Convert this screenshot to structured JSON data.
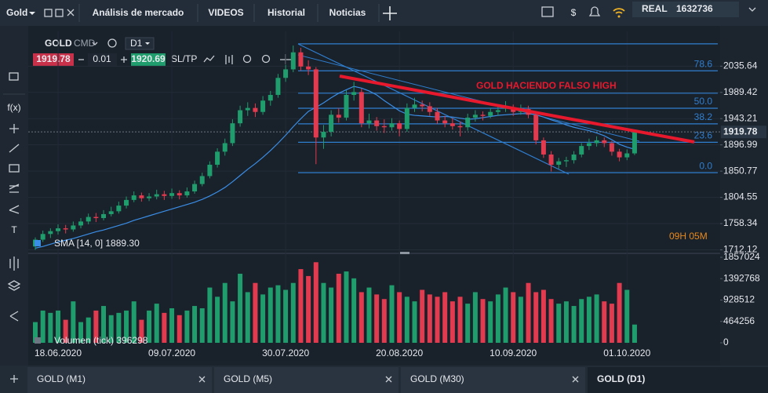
{
  "topbar": {
    "instrument": "Gold",
    "tabs": [
      "Análisis de mercado",
      "VIDEOS",
      "Historial",
      "Noticias"
    ],
    "account_type": "REAL",
    "balance": 1632736
  },
  "toolbar": {
    "tools": [
      "f(x)",
      "T"
    ]
  },
  "chart_header": {
    "symbol": "GOLD",
    "class": "CMD",
    "timeframe": "D1",
    "bid": 1919.78,
    "lot": 0.01,
    "ask": 1920.69,
    "sltp": "SL/TP"
  },
  "chart": {
    "type": "candlestick",
    "categories": [
      null,
      null,
      null,
      "18.06.2020",
      null,
      null,
      null,
      null,
      null,
      null,
      null,
      null,
      null,
      null,
      null,
      null,
      null,
      null,
      "09.07.2020",
      null,
      null,
      null,
      null,
      null,
      null,
      null,
      null,
      null,
      null,
      null,
      null,
      null,
      null,
      "30.07.2020",
      null,
      null,
      null,
      null,
      null,
      null,
      null,
      null,
      null,
      null,
      null,
      null,
      null,
      null,
      "20.08.2020",
      null,
      null,
      null,
      null,
      null,
      null,
      null,
      null,
      null,
      null,
      null,
      null,
      null,
      null,
      "10.09.2020",
      null,
      null,
      null,
      null,
      null,
      null,
      null,
      null,
      null,
      null,
      null,
      null,
      null,
      null,
      "01.10.2020",
      null
    ],
    "candles": [
      [
        1718,
        1734,
        1712,
        1730
      ],
      [
        1730,
        1746,
        1726,
        1740
      ],
      [
        1740,
        1750,
        1733,
        1745
      ],
      [
        1745,
        1757,
        1739,
        1750
      ],
      [
        1750,
        1756,
        1741,
        1748
      ],
      [
        1748,
        1762,
        1744,
        1755
      ],
      [
        1755,
        1768,
        1750,
        1762
      ],
      [
        1762,
        1776,
        1757,
        1770
      ],
      [
        1770,
        1777,
        1761,
        1768
      ],
      [
        1768,
        1782,
        1764,
        1775
      ],
      [
        1775,
        1788,
        1771,
        1780
      ],
      [
        1780,
        1797,
        1776,
        1790
      ],
      [
        1790,
        1806,
        1785,
        1800
      ],
      [
        1800,
        1815,
        1796,
        1808
      ],
      [
        1808,
        1813,
        1797,
        1803
      ],
      [
        1803,
        1812,
        1798,
        1806
      ],
      [
        1806,
        1818,
        1801,
        1810
      ],
      [
        1810,
        1816,
        1800,
        1807
      ],
      [
        1807,
        1820,
        1802,
        1812
      ],
      [
        1812,
        1817,
        1801,
        1808
      ],
      [
        1808,
        1822,
        1804,
        1815
      ],
      [
        1815,
        1834,
        1811,
        1828
      ],
      [
        1828,
        1848,
        1824,
        1842
      ],
      [
        1842,
        1868,
        1838,
        1862
      ],
      [
        1862,
        1891,
        1857,
        1885
      ],
      [
        1885,
        1908,
        1878,
        1900
      ],
      [
        1900,
        1942,
        1895,
        1935
      ],
      [
        1935,
        1966,
        1929,
        1958
      ],
      [
        1958,
        1972,
        1948,
        1962
      ],
      [
        1962,
        1970,
        1946,
        1955
      ],
      [
        1955,
        1983,
        1950,
        1975
      ],
      [
        1975,
        1992,
        1966,
        1985
      ],
      [
        1985,
        2022,
        1980,
        2015
      ],
      [
        2015,
        2038,
        2008,
        2030
      ],
      [
        2030,
        2072,
        2025,
        2060
      ],
      [
        2060,
        2068,
        2028,
        2035
      ],
      [
        2035,
        2046,
        2020,
        2030
      ],
      [
        2030,
        2034,
        1863,
        1910
      ],
      [
        1910,
        1932,
        1890,
        1920
      ],
      [
        1920,
        1958,
        1912,
        1950
      ],
      [
        1950,
        1962,
        1936,
        1945
      ],
      [
        1945,
        1993,
        1940,
        1985
      ],
      [
        1985,
        2008,
        1975,
        1990
      ],
      [
        1990,
        1996,
        1928,
        1935
      ],
      [
        1935,
        1952,
        1926,
        1940
      ],
      [
        1940,
        1946,
        1922,
        1930
      ],
      [
        1930,
        1942,
        1918,
        1928
      ],
      [
        1928,
        1944,
        1922,
        1935
      ],
      [
        1935,
        1940,
        1912,
        1925
      ],
      [
        1925,
        1970,
        1920,
        1962
      ],
      [
        1962,
        1980,
        1955,
        1968
      ],
      [
        1968,
        1975,
        1956,
        1965
      ],
      [
        1965,
        1972,
        1948,
        1955
      ],
      [
        1955,
        1962,
        1934,
        1940
      ],
      [
        1940,
        1948,
        1928,
        1935
      ],
      [
        1935,
        1944,
        1924,
        1930
      ],
      [
        1930,
        1938,
        1912,
        1928
      ],
      [
        1928,
        1952,
        1922,
        1945
      ],
      [
        1945,
        1958,
        1938,
        1950
      ],
      [
        1950,
        1956,
        1940,
        1948
      ],
      [
        1948,
        1962,
        1944,
        1955
      ],
      [
        1955,
        1966,
        1948,
        1958
      ],
      [
        1962,
        1974,
        1955,
        1962
      ],
      [
        1962,
        1968,
        1948,
        1955
      ],
      [
        1955,
        1968,
        1950,
        1960
      ],
      [
        1960,
        1966,
        1944,
        1950
      ],
      [
        1950,
        1954,
        1898,
        1905
      ],
      [
        1905,
        1910,
        1874,
        1880
      ],
      [
        1880,
        1886,
        1850,
        1862
      ],
      [
        1862,
        1874,
        1855,
        1868
      ],
      [
        1868,
        1876,
        1858,
        1870
      ],
      [
        1870,
        1886,
        1864,
        1880
      ],
      [
        1880,
        1900,
        1875,
        1895
      ],
      [
        1895,
        1908,
        1888,
        1900
      ],
      [
        1900,
        1912,
        1894,
        1905
      ],
      [
        1905,
        1910,
        1893,
        1900
      ],
      [
        1900,
        1904,
        1878,
        1885
      ],
      [
        1885,
        1890,
        1868,
        1875
      ],
      [
        1875,
        1889,
        1870,
        1882
      ],
      [
        1882,
        1924,
        1879,
        1919.78
      ]
    ],
    "sma": [
      1715,
      1718,
      1722,
      1726,
      1729,
      1732,
      1736,
      1740,
      1744,
      1747,
      1751,
      1755,
      1759,
      1764,
      1768,
      1772,
      1776,
      1780,
      1784,
      1788,
      1792,
      1796,
      1801,
      1807,
      1814,
      1822,
      1832,
      1843,
      1854,
      1864,
      1875,
      1887,
      1900,
      1914,
      1929,
      1943,
      1956,
      1963,
      1971,
      1980,
      1988,
      1994,
      2000,
      1997,
      1992,
      1985,
      1975,
      1966,
      1957,
      1951,
      1949,
      1948,
      1947,
      1946,
      1947,
      1946,
      1944,
      1942,
      1943,
      1945,
      1947,
      1949,
      1950,
      1951,
      1952,
      1952,
      1950,
      1946,
      1941,
      1937,
      1932,
      1928,
      1925,
      1922,
      1918,
      1913,
      1906,
      1898,
      1893,
      1889.3
    ],
    "sma_label": "SMA [14, 0] 1889.30",
    "ylim": [
      1710,
      2090
    ],
    "yticks": [
      2035.64,
      1989.42,
      1943.21,
      1896.99,
      1850.77,
      1804.55,
      1758.34,
      1712.12
    ],
    "grid": true,
    "current_price": 1919.78,
    "up_color": "#1f9d6c",
    "down_color": "#e23a4e",
    "sma_color": "#3a8ee6",
    "fib_color": "#2f7fd0",
    "annotation": "GOLD HACIENDO FALSO HIGH",
    "countdown": "09H 05M",
    "fib": [
      {
        "price": 2075
      },
      {
        "price": 2027.5,
        "level": 78.6
      },
      {
        "price": 1988
      },
      {
        "price": 1961.5,
        "level": {
          "value": 50,
          "label": "50.0"
        }
      },
      {
        "price": 1934,
        "level": 38.2
      },
      {
        "price": 1901.6,
        "level": 23.6
      },
      {
        "price": 1848,
        "level": {
          "value": 0,
          "label": "0.0"
        }
      }
    ]
  },
  "volume": {
    "values": [
      450000,
      700000,
      650000,
      700000,
      500000,
      900000,
      450000,
      550000,
      700000,
      800000,
      600000,
      650000,
      700000,
      900000,
      500000,
      700000,
      850000,
      650000,
      750000,
      600000,
      700000,
      800000,
      750000,
      1200000,
      1000000,
      1300000,
      900000,
      1500000,
      1100000,
      1300000,
      1050000,
      1200000,
      1250000,
      1150000,
      1300000,
      1600000,
      1450000,
      1750000,
      1300000,
      1200000,
      1500000,
      1550000,
      1400000,
      1100000,
      1200000,
      1050000,
      950000,
      1250000,
      1100000,
      1000000,
      900000,
      1150000,
      1050000,
      1000000,
      1100000,
      900000,
      1000000,
      850000,
      1100000,
      950000,
      900000,
      1050000,
      1200000,
      1100000,
      1000000,
      1300000,
      1100000,
      1150000,
      950000,
      850000,
      900000,
      800000,
      950000,
      1000000,
      1050000,
      900000,
      850000,
      1300000,
      1150000,
      396298
    ],
    "label": "Volumen (tick) 396298",
    "ylim": [
      0,
      1857024
    ],
    "yticks": [
      1857024,
      1392768,
      928512,
      464256,
      0
    ]
  },
  "bottom_tabs": [
    "GOLD (M1)",
    "GOLD (M5)",
    "GOLD (M30)",
    "GOLD (D1)"
  ]
}
